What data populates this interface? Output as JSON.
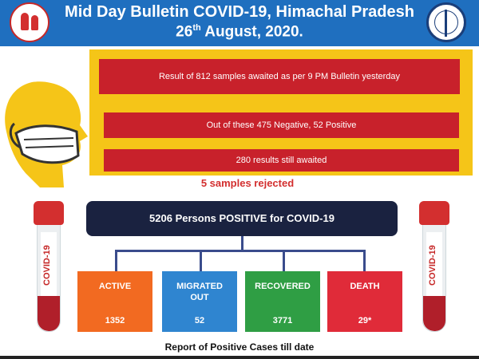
{
  "header": {
    "title": "Mid Day Bulletin COVID-19, Himachal Pradesh",
    "date_day": "26",
    "date_suffix": "th",
    "date_rest": "August, 2020."
  },
  "colors": {
    "header_bg": "#1f6fbf",
    "panel_yellow": "#f5c518",
    "bar_red": "#c8212b",
    "positive_box": "#1a2240",
    "active": "#f26a21",
    "migrated": "#2f85d0",
    "recovered": "#2f9e44",
    "death": "#e02b39"
  },
  "samples": {
    "line1": "Result  of  812 samples awaited as per 9 PM Bulletin yesterday",
    "line2": "Out of these  475 Negative, 52 Positive",
    "line3": "280 results still awaited",
    "rejected": "5 samples rejected"
  },
  "tube_label": "COVID-19",
  "positive": "5206 Persons POSITIVE for COVID-19",
  "cards": {
    "active": {
      "label": "ACTIVE",
      "value": "1352"
    },
    "migrated": {
      "label": "MIGRATED OUT",
      "value": "52"
    },
    "recovered": {
      "label": "RECOVERED",
      "value": "3771"
    },
    "death": {
      "label": "DEATH",
      "value": "29*"
    }
  },
  "footer": "Report of Positive Cases till date"
}
